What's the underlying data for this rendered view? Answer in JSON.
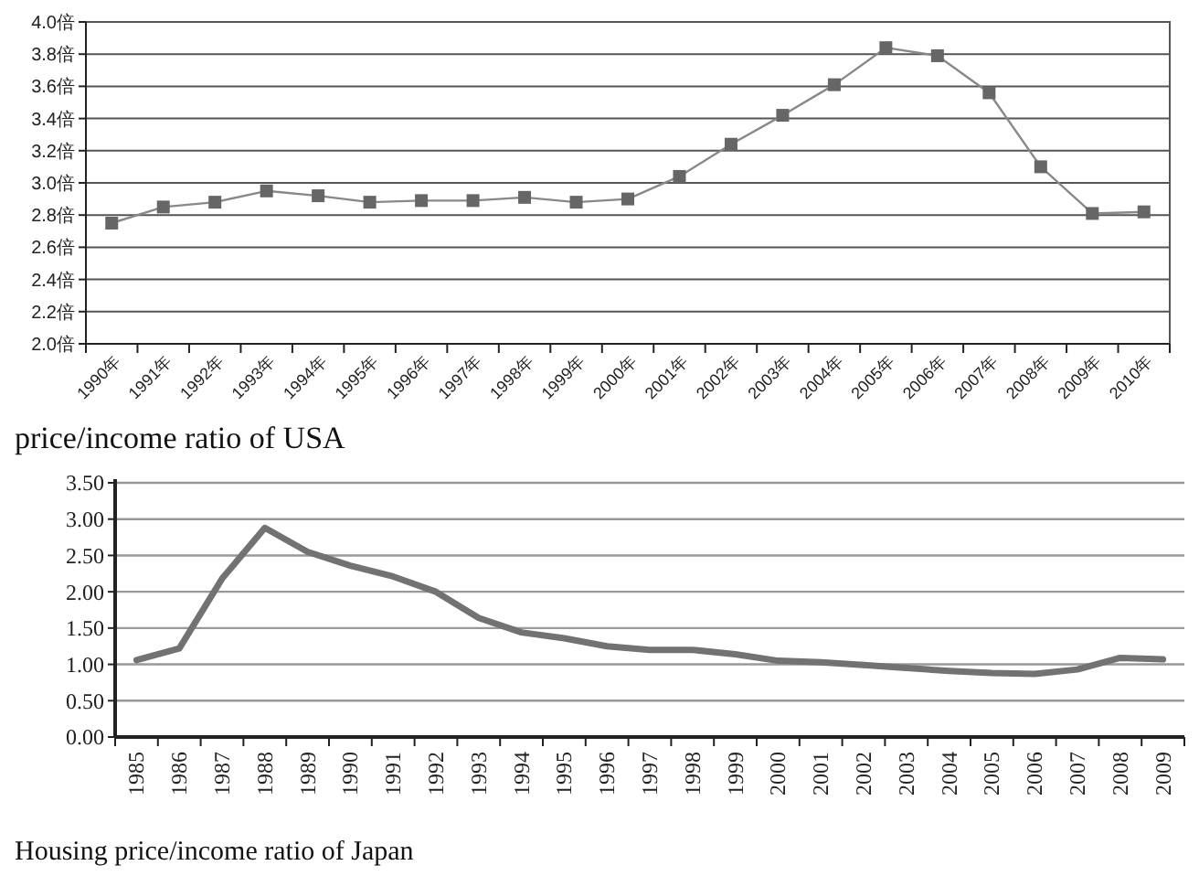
{
  "chart_data": [
    {
      "type": "line",
      "title": "price/income ratio of USA",
      "categories": [
        "1990年",
        "1991年",
        "1992年",
        "1993年",
        "1994年",
        "1995年",
        "1996年",
        "1997年",
        "1998年",
        "1999年",
        "2000年",
        "2001年",
        "2002年",
        "2003年",
        "2004年",
        "2005年",
        "2006年",
        "2007年",
        "2008年",
        "2009年",
        "2010年"
      ],
      "series": [
        {
          "color": "#666666",
          "values": [
            2.75,
            2.85,
            2.88,
            2.95,
            2.92,
            2.88,
            2.89,
            2.89,
            2.91,
            2.88,
            2.9,
            3.04,
            3.24,
            3.42,
            3.61,
            3.84,
            3.79,
            3.56,
            3.1,
            2.81,
            2.82
          ]
        }
      ],
      "ylim": [
        2.0,
        4.0
      ],
      "yticks": [
        {
          "value": 2.0,
          "label": "2.0倍"
        },
        {
          "value": 2.2,
          "label": "2.2倍"
        },
        {
          "value": 2.4,
          "label": "2.4倍"
        },
        {
          "value": 2.6,
          "label": "2.6倍"
        },
        {
          "value": 2.8,
          "label": "2.8倍"
        },
        {
          "value": 3.0,
          "label": "3.0倍"
        },
        {
          "value": 3.2,
          "label": "3.2倍"
        },
        {
          "value": 3.4,
          "label": "3.4倍"
        },
        {
          "value": 3.6,
          "label": "3.6倍"
        },
        {
          "value": 3.8,
          "label": "3.8倍"
        },
        {
          "value": 4.0,
          "label": "4.0倍"
        }
      ],
      "grid": true,
      "marker": "square"
    },
    {
      "type": "line",
      "title": "Housing price/income ratio of Japan",
      "categories": [
        "1985",
        "1986",
        "1987",
        "1988",
        "1989",
        "1990",
        "1991",
        "1992",
        "1993",
        "1994",
        "1995",
        "1996",
        "1997",
        "1998",
        "1999",
        "2000",
        "2001",
        "2002",
        "2003",
        "2004",
        "2005",
        "2006",
        "2007",
        "2008",
        "2009"
      ],
      "series": [
        {
          "color": "#727272",
          "values": [
            1.06,
            1.22,
            2.18,
            2.88,
            2.55,
            2.36,
            2.21,
            2.0,
            1.64,
            1.44,
            1.36,
            1.25,
            1.2,
            1.2,
            1.14,
            1.05,
            1.03,
            0.99,
            0.95,
            0.91,
            0.88,
            0.87,
            0.93,
            1.09,
            1.07
          ]
        }
      ],
      "ylim": [
        0,
        3.5
      ],
      "yticks": [
        {
          "value": 0,
          "label": "0.00"
        },
        {
          "value": 0.5,
          "label": "0.50"
        },
        {
          "value": 1.0,
          "label": "1.00"
        },
        {
          "value": 1.5,
          "label": "1.50"
        },
        {
          "value": 2.0,
          "label": "2.00"
        },
        {
          "value": 2.5,
          "label": "2.50"
        },
        {
          "value": 3.0,
          "label": "3.00"
        },
        {
          "value": 3.5,
          "label": "3.50"
        }
      ],
      "grid": "y",
      "marker": "none"
    }
  ]
}
